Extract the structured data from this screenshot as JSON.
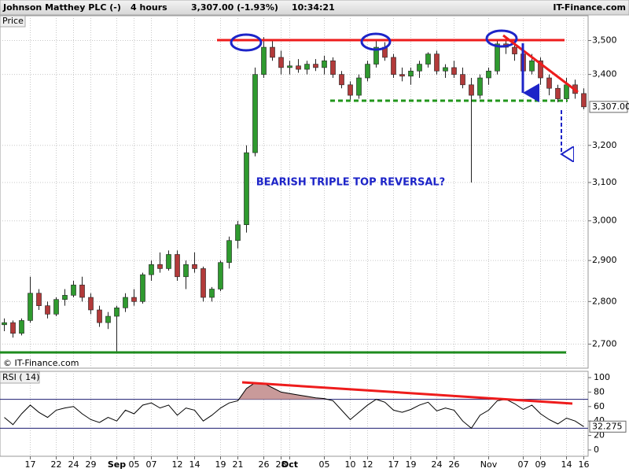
{
  "header": {
    "title": "Johnson Matthey PLC (-)",
    "interval": "4 hours",
    "quote": "3,307.00 (-1.93%)",
    "time": "10:34:21",
    "site": "IT-Finance.com",
    "panel_label": "Price",
    "copyright": "© IT-Finance.com"
  },
  "chart_data": [
    {
      "type": "candlestick",
      "annotation": "BEARISH TRIPLE TOP REVERSAL?",
      "log_scale": true,
      "grid": true,
      "up_color": "#2f9a2f",
      "down_color": "#b23a3a",
      "categories": [
        null,
        null,
        null,
        "17",
        null,
        null,
        "22",
        null,
        "24",
        null,
        "29",
        null,
        null,
        "Sep",
        null,
        "05",
        null,
        "07",
        null,
        null,
        "12",
        null,
        "14",
        null,
        null,
        "19",
        null,
        "21",
        null,
        null,
        "26",
        null,
        "28",
        "Oct",
        null,
        null,
        null,
        "05",
        null,
        null,
        "10",
        null,
        "12",
        null,
        null,
        "17",
        null,
        "19",
        null,
        null,
        "24",
        null,
        "26",
        null,
        null,
        null,
        "Nov",
        null,
        null,
        null,
        "07",
        null,
        "09",
        null,
        null,
        "14",
        null,
        "16"
      ],
      "open": [
        2745,
        2750,
        2725,
        2755,
        2820,
        2790,
        2770,
        2805,
        2815,
        2840,
        2810,
        2780,
        2750,
        2765,
        2785,
        2810,
        2800,
        2865,
        2890,
        2880,
        2915,
        2860,
        2890,
        2880,
        2810,
        2830,
        2895,
        2950,
        2990,
        3180,
        3400,
        3480,
        3450,
        3420,
        3425,
        3415,
        3430,
        3420,
        3440,
        3400,
        3370,
        3340,
        3390,
        3430,
        3480,
        3450,
        3400,
        3395,
        3410,
        3430,
        3460,
        3410,
        3420,
        3400,
        3370,
        3340,
        3390,
        3410,
        3490,
        3480,
        3460,
        3410,
        3440,
        3390,
        3360,
        3330,
        3370,
        3345
      ],
      "high": [
        2760,
        2755,
        2760,
        2860,
        2830,
        2800,
        2810,
        2830,
        2850,
        2860,
        2820,
        2790,
        2775,
        2790,
        2820,
        2830,
        2870,
        2900,
        2920,
        2925,
        2925,
        2900,
        2920,
        2885,
        2835,
        2900,
        2960,
        3000,
        3200,
        3420,
        3510,
        3500,
        3470,
        3440,
        3445,
        3440,
        3445,
        3455,
        3450,
        3410,
        3380,
        3400,
        3440,
        3500,
        3495,
        3460,
        3420,
        3420,
        3440,
        3465,
        3470,
        3430,
        3440,
        3420,
        3390,
        3400,
        3420,
        3500,
        3510,
        3490,
        3470,
        3460,
        3450,
        3400,
        3370,
        3390,
        3385,
        3360
      ],
      "low": [
        2730,
        2715,
        2720,
        2750,
        2780,
        2760,
        2765,
        2790,
        2810,
        2800,
        2770,
        2740,
        2735,
        2680,
        2775,
        2790,
        2795,
        2850,
        2870,
        2875,
        2850,
        2830,
        2870,
        2800,
        2800,
        2825,
        2880,
        2930,
        2970,
        3170,
        3390,
        3440,
        3400,
        3400,
        3405,
        3400,
        3410,
        3400,
        3390,
        3360,
        3325,
        3330,
        3380,
        3420,
        3440,
        3390,
        3380,
        3370,
        3390,
        3420,
        3400,
        3390,
        3390,
        3360,
        3100,
        3330,
        3370,
        3400,
        3460,
        3440,
        3390,
        3400,
        3370,
        3340,
        3320,
        3320,
        3330,
        3300
      ],
      "close": [
        2750,
        2725,
        2755,
        2820,
        2790,
        2770,
        2805,
        2815,
        2840,
        2810,
        2780,
        2750,
        2765,
        2785,
        2810,
        2800,
        2865,
        2890,
        2880,
        2915,
        2860,
        2890,
        2880,
        2810,
        2830,
        2895,
        2950,
        2990,
        3180,
        3400,
        3480,
        3450,
        3420,
        3425,
        3415,
        3430,
        3420,
        3440,
        3400,
        3370,
        3340,
        3390,
        3430,
        3480,
        3450,
        3400,
        3395,
        3410,
        3430,
        3460,
        3410,
        3420,
        3400,
        3370,
        3340,
        3390,
        3410,
        3490,
        3480,
        3460,
        3410,
        3440,
        3390,
        3360,
        3330,
        3370,
        3345,
        3307
      ],
      "ylim": [
        2645,
        3575
      ],
      "yticks": [
        {
          "value": 2700,
          "label": "2,700"
        },
        {
          "value": 2800,
          "label": "2,800"
        },
        {
          "value": 2900,
          "label": "2,900"
        },
        {
          "value": 3000,
          "label": "3,000"
        },
        {
          "value": 3100,
          "label": "3,100"
        },
        {
          "value": 3200,
          "label": "3,200"
        },
        {
          "value": 3400,
          "label": "3,400"
        },
        {
          "value": 3500,
          "label": "3,500"
        }
      ],
      "current_price": {
        "value": 3307,
        "label": "3,307.00"
      }
    },
    {
      "type": "line",
      "title": "RSI ( 14)",
      "color": "#000000",
      "fill_color": "#c99a9a",
      "level_color": "#1c1c70",
      "values": [
        45,
        35,
        50,
        62,
        52,
        45,
        55,
        58,
        60,
        50,
        42,
        38,
        45,
        40,
        55,
        50,
        62,
        65,
        58,
        62,
        48,
        58,
        55,
        40,
        48,
        58,
        65,
        68,
        85,
        93,
        92,
        86,
        80,
        78,
        76,
        74,
        72,
        71,
        68,
        55,
        42,
        52,
        62,
        70,
        66,
        55,
        52,
        56,
        62,
        66,
        54,
        58,
        55,
        40,
        30,
        48,
        55,
        68,
        70,
        64,
        56,
        62,
        50,
        42,
        36,
        44,
        40,
        32.275
      ],
      "levels": [
        30,
        70
      ],
      "ylim": [
        -8.7,
        108.7
      ],
      "yticks": [
        0,
        20,
        40,
        60,
        80,
        100
      ]
    }
  ]
}
